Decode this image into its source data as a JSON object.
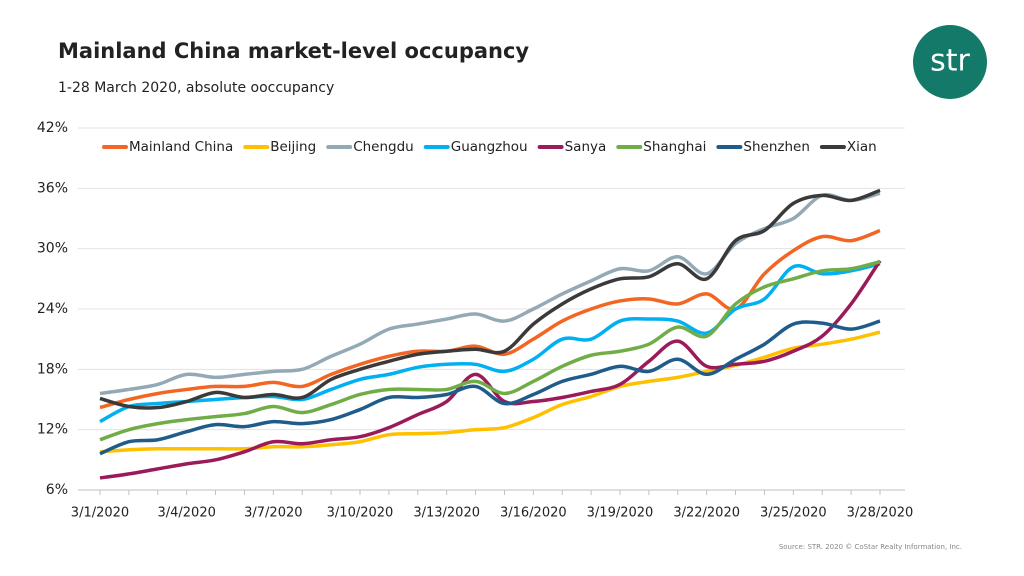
{
  "chart_data": {
    "type": "line",
    "title": "Mainland China market-level occupancy",
    "subtitle": "1-28 March 2020, absolute ooccupancy",
    "source": "Source: STR. 2020 © CoStar Realty Information, Inc.",
    "categories": [
      "3/1/2020",
      "3/2/2020",
      "3/3/2020",
      "3/4/2020",
      "3/5/2020",
      "3/6/2020",
      "3/7/2020",
      "3/8/2020",
      "3/9/2020",
      "3/10/2020",
      "3/11/2020",
      "3/12/2020",
      "3/13/2020",
      "3/14/2020",
      "3/15/2020",
      "3/16/2020",
      "3/17/2020",
      "3/18/2020",
      "3/19/2020",
      "3/20/2020",
      "3/21/2020",
      "3/22/2020",
      "3/23/2020",
      "3/24/2020",
      "3/25/2020",
      "3/26/2020",
      "3/27/2020",
      "3/28/2020"
    ],
    "series": [
      {
        "name": "Mainland China",
        "color": "#f26522",
        "values": [
          14.2,
          15.0,
          15.6,
          16.0,
          16.3,
          16.3,
          16.7,
          16.3,
          17.5,
          18.5,
          19.3,
          19.8,
          19.8,
          20.3,
          19.5,
          21.0,
          22.8,
          24.0,
          24.8,
          25.0,
          24.5,
          25.5,
          24.0,
          27.5,
          29.8,
          31.2,
          30.8,
          31.8
        ]
      },
      {
        "name": "Beijing",
        "color": "#ffc000",
        "values": [
          9.8,
          10.0,
          10.1,
          10.1,
          10.1,
          10.1,
          10.3,
          10.3,
          10.5,
          10.8,
          11.5,
          11.6,
          11.7,
          12.0,
          12.2,
          13.2,
          14.5,
          15.3,
          16.3,
          16.8,
          17.2,
          17.8,
          18.4,
          19.2,
          20.1,
          20.5,
          21.0,
          21.7
        ]
      },
      {
        "name": "Chengdu",
        "color": "#93a9b5",
        "values": [
          15.6,
          16.0,
          16.5,
          17.5,
          17.2,
          17.5,
          17.8,
          18.0,
          19.3,
          20.5,
          22.0,
          22.5,
          23.0,
          23.5,
          22.8,
          24.0,
          25.5,
          26.8,
          28.0,
          27.8,
          29.2,
          27.5,
          30.5,
          32.0,
          33.0,
          35.3,
          34.8,
          35.5
        ]
      },
      {
        "name": "Guangzhou",
        "color": "#00b0f0",
        "values": [
          12.8,
          14.3,
          14.6,
          14.8,
          15.0,
          15.2,
          15.3,
          15.0,
          16.0,
          17.0,
          17.5,
          18.2,
          18.5,
          18.5,
          17.8,
          19.0,
          21.0,
          21.0,
          22.8,
          23.0,
          22.8,
          21.6,
          24.0,
          25.0,
          28.2,
          27.5,
          27.8,
          28.5
        ]
      },
      {
        "name": "Sanya",
        "color": "#9b1b5a",
        "values": [
          7.2,
          7.6,
          8.1,
          8.6,
          9.0,
          9.8,
          10.8,
          10.6,
          11.0,
          11.3,
          12.2,
          13.5,
          14.8,
          17.5,
          14.8,
          14.8,
          15.2,
          15.8,
          16.5,
          18.8,
          20.8,
          18.3,
          18.5,
          18.8,
          19.8,
          21.3,
          24.5,
          28.8
        ]
      },
      {
        "name": "Shanghai",
        "color": "#70ad47",
        "values": [
          11.0,
          12.0,
          12.6,
          13.0,
          13.3,
          13.6,
          14.3,
          13.7,
          14.5,
          15.5,
          16.0,
          16.0,
          16.0,
          16.8,
          15.6,
          16.8,
          18.3,
          19.4,
          19.8,
          20.5,
          22.2,
          21.3,
          24.5,
          26.2,
          27.0,
          27.8,
          28.0,
          28.7
        ]
      },
      {
        "name": "Shenzhen",
        "color": "#1f5c8b",
        "values": [
          9.6,
          10.8,
          11.0,
          11.8,
          12.5,
          12.3,
          12.8,
          12.6,
          13.0,
          14.0,
          15.2,
          15.2,
          15.5,
          16.3,
          14.6,
          15.5,
          16.8,
          17.5,
          18.3,
          17.8,
          19.0,
          17.5,
          19.0,
          20.5,
          22.5,
          22.6,
          22.0,
          22.8
        ]
      },
      {
        "name": "Xian",
        "color": "#3a3a3a",
        "values": [
          15.1,
          14.3,
          14.2,
          14.8,
          15.7,
          15.2,
          15.5,
          15.2,
          17.0,
          18.0,
          18.8,
          19.5,
          19.8,
          20.0,
          19.8,
          22.5,
          24.5,
          26.0,
          27.0,
          27.2,
          28.5,
          27.0,
          30.8,
          31.8,
          34.5,
          35.3,
          34.8,
          35.8
        ]
      }
    ],
    "ylim": [
      6,
      42
    ],
    "yticks": [
      {
        "value": 6,
        "label": "6%"
      },
      {
        "value": 12,
        "label": "12%"
      },
      {
        "value": 18,
        "label": "18%"
      },
      {
        "value": 24,
        "label": "24%"
      },
      {
        "value": 30,
        "label": "30%"
      },
      {
        "value": 36,
        "label": "36%"
      },
      {
        "value": 42,
        "label": "42%"
      }
    ],
    "grid": true,
    "legend": "top"
  },
  "logo": "str"
}
